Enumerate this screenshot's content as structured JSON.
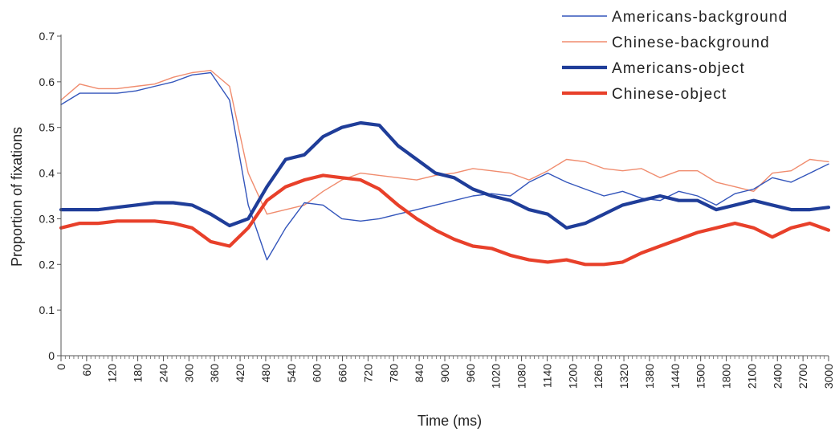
{
  "chart_data": {
    "type": "line",
    "title": "",
    "xlabel": "Time (ms)",
    "ylabel": "Proportion of fixations",
    "ylim": [
      0,
      0.7
    ],
    "y_ticks": [
      "0",
      "0.1",
      "0.2",
      "0.3",
      "0.4",
      "0.5",
      "0.6",
      "0.7"
    ],
    "y_tick_values": [
      0,
      0.1,
      0.2,
      0.3,
      0.4,
      0.5,
      0.6,
      0.7
    ],
    "x_tick_labels": [
      "0",
      "60",
      "120",
      "180",
      "240",
      "300",
      "360",
      "420",
      "480",
      "540",
      "600",
      "660",
      "720",
      "780",
      "840",
      "900",
      "960",
      "1020",
      "1080",
      "1140",
      "1200",
      "1260",
      "1320",
      "1380",
      "1440",
      "1500",
      "1800",
      "2100",
      "2400",
      "2700",
      "3000"
    ],
    "legend_position": "top-right",
    "grid": false,
    "series": [
      {
        "name": "Americans-background",
        "color": "#3355bb",
        "style": "thin",
        "values": [
          0.55,
          0.575,
          0.575,
          0.575,
          0.58,
          0.59,
          0.6,
          0.615,
          0.62,
          0.56,
          0.33,
          0.21,
          0.28,
          0.335,
          0.33,
          0.3,
          0.295,
          0.3,
          0.31,
          0.32,
          0.33,
          0.34,
          0.35,
          0.355,
          0.35,
          0.38,
          0.4,
          0.38,
          0.365,
          0.35,
          0.36,
          0.345,
          0.34,
          0.36,
          0.35,
          0.33,
          0.355,
          0.365,
          0.39,
          0.38,
          0.4,
          0.42
        ]
      },
      {
        "name": "Chinese-background",
        "color": "#f08c6e",
        "style": "thin",
        "values": [
          0.56,
          0.595,
          0.585,
          0.585,
          0.59,
          0.595,
          0.61,
          0.62,
          0.625,
          0.59,
          0.4,
          0.31,
          0.32,
          0.33,
          0.36,
          0.385,
          0.4,
          0.395,
          0.39,
          0.385,
          0.395,
          0.4,
          0.41,
          0.405,
          0.4,
          0.385,
          0.405,
          0.43,
          0.425,
          0.41,
          0.405,
          0.41,
          0.39,
          0.405,
          0.405,
          0.38,
          0.37,
          0.36,
          0.4,
          0.405,
          0.43,
          0.425
        ]
      },
      {
        "name": "Americans-object",
        "color": "#1f3d99",
        "style": "thick",
        "values": [
          0.32,
          0.32,
          0.32,
          0.325,
          0.33,
          0.335,
          0.335,
          0.33,
          0.31,
          0.285,
          0.3,
          0.37,
          0.43,
          0.44,
          0.48,
          0.5,
          0.51,
          0.505,
          0.46,
          0.43,
          0.4,
          0.39,
          0.365,
          0.35,
          0.34,
          0.32,
          0.31,
          0.28,
          0.29,
          0.31,
          0.33,
          0.34,
          0.35,
          0.34,
          0.34,
          0.32,
          0.33,
          0.34,
          0.33,
          0.32,
          0.32,
          0.325
        ]
      },
      {
        "name": "Chinese-object",
        "color": "#e8402a",
        "style": "thick",
        "values": [
          0.28,
          0.29,
          0.29,
          0.295,
          0.295,
          0.295,
          0.29,
          0.28,
          0.25,
          0.24,
          0.28,
          0.34,
          0.37,
          0.385,
          0.395,
          0.39,
          0.385,
          0.365,
          0.33,
          0.3,
          0.275,
          0.255,
          0.24,
          0.235,
          0.22,
          0.21,
          0.205,
          0.21,
          0.2,
          0.2,
          0.205,
          0.225,
          0.24,
          0.255,
          0.27,
          0.28,
          0.29,
          0.28,
          0.26,
          0.28,
          0.29,
          0.275
        ]
      }
    ]
  }
}
